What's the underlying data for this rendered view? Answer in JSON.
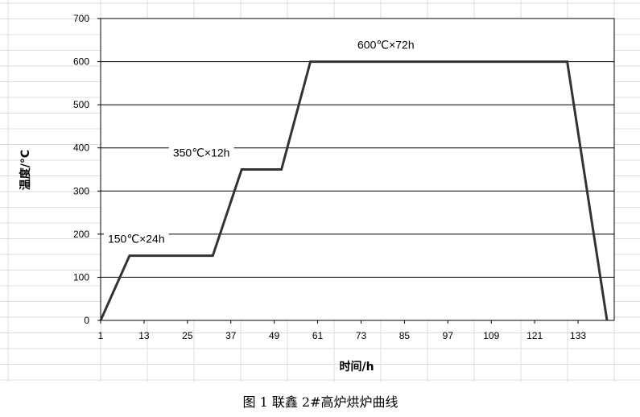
{
  "chart_data": {
    "type": "line",
    "ylabel": "温度/°C",
    "xlabel": "时间/h",
    "caption": "图 1 联鑫 2#高炉烘炉曲线",
    "ylim": [
      0,
      700
    ],
    "y_ticks": [
      "0",
      "100",
      "200",
      "300",
      "400",
      "500",
      "600",
      "700"
    ],
    "x_ticks": [
      "1",
      "13",
      "25",
      "37",
      "49",
      "61",
      "73",
      "85",
      "97",
      "109",
      "121",
      "133"
    ],
    "xlim": [
      1,
      143
    ],
    "grid": "horizontal",
    "series": [
      {
        "x": [
          1,
          9,
          32,
          40,
          51,
          59,
          130,
          141
        ],
        "y": [
          0,
          150,
          150,
          350,
          350,
          600,
          600,
          0
        ]
      }
    ],
    "annotations": [
      {
        "text": "150℃×24h",
        "x": 3,
        "y": 180
      },
      {
        "text": "350℃×12h",
        "x": 21,
        "y": 380
      },
      {
        "text": "600℃×72h",
        "x": 72,
        "y": 630
      }
    ]
  }
}
